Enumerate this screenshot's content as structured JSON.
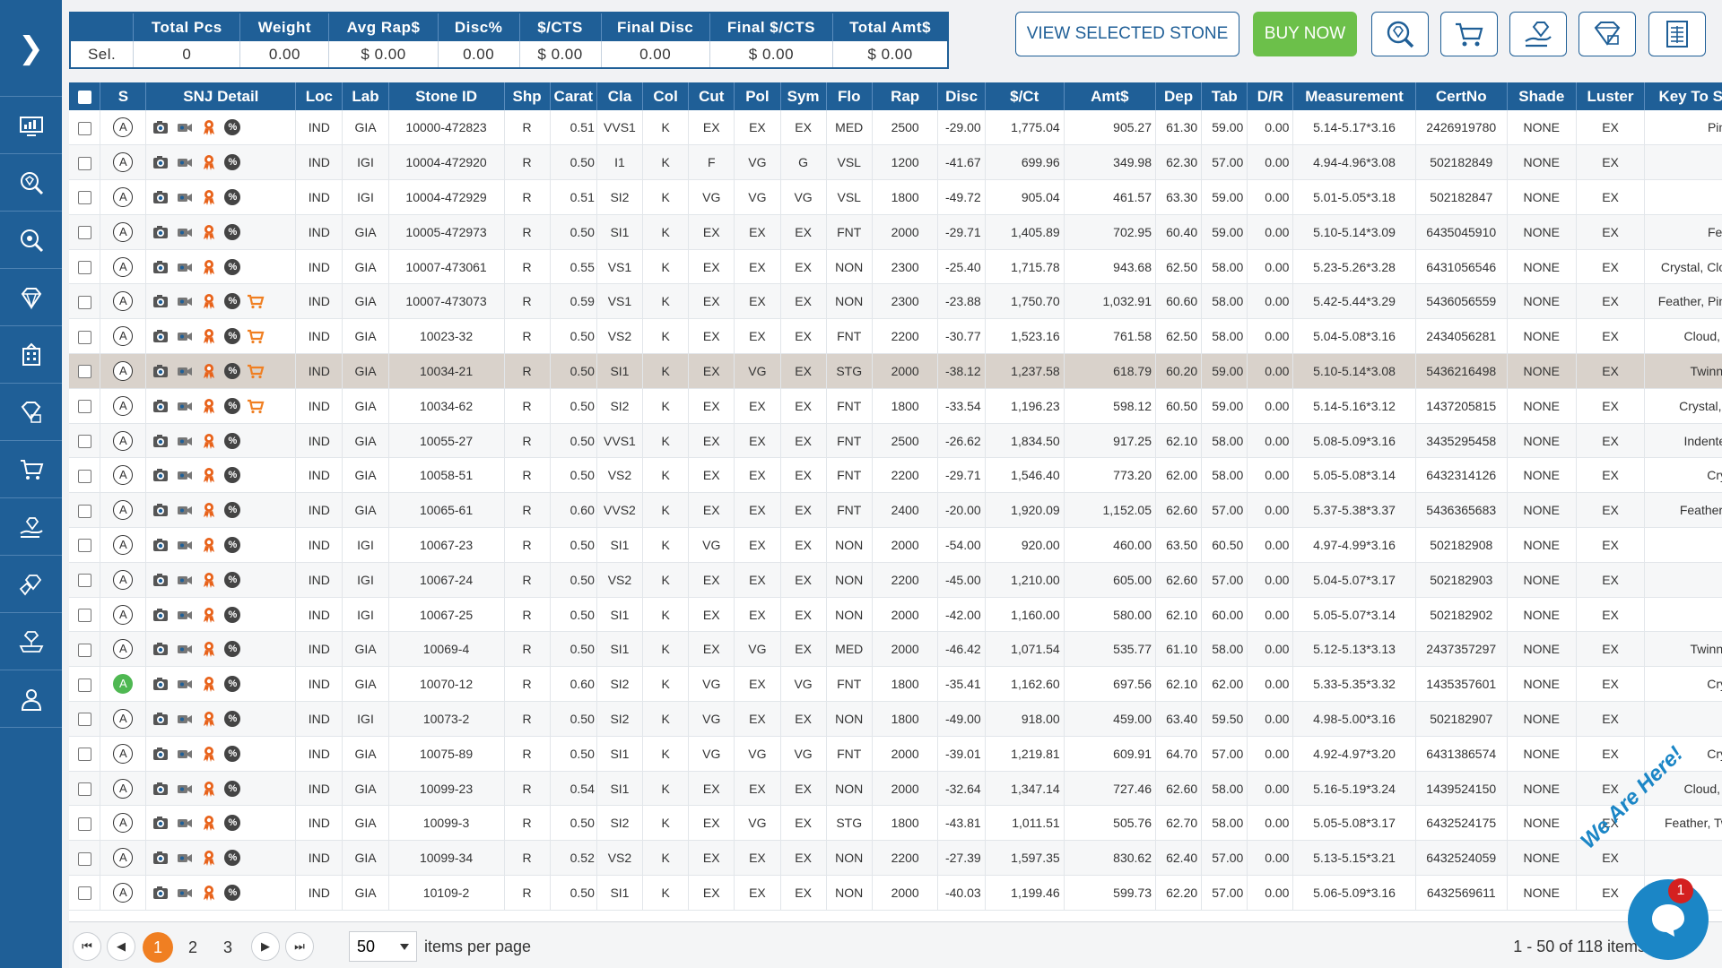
{
  "summary": {
    "headers": [
      "",
      "Total Pcs",
      "Weight",
      "Avg Rap$",
      "Disc%",
      "$/CTS",
      "Final Disc",
      "Final $/CTS",
      "Total Amt$"
    ],
    "row": [
      "Sel.",
      "0",
      "0.00",
      "$ 0.00",
      "0.00",
      "$ 0.00",
      "0.00",
      "$ 0.00",
      "$ 0.00"
    ]
  },
  "actions": {
    "view_selected": "VIEW SELECTED STONE",
    "buy_now": "BUY NOW"
  },
  "colors": {
    "primary": "#1f5f97",
    "buy": "#6cc04a",
    "active_page": "#f07f22",
    "highlight_row": "#d9d2cb"
  },
  "grid": {
    "columns": [
      "",
      "S",
      "SNJ Detail",
      "Loc",
      "Lab",
      "Stone ID",
      "Shp",
      "Carat",
      "Cla",
      "Col",
      "Cut",
      "Pol",
      "Sym",
      "Flo",
      "Rap",
      "Disc",
      "$/Ct",
      "Amt$",
      "Dep",
      "Tab",
      "D/R",
      "Measurement",
      "CertNo",
      "Shade",
      "Luster",
      "Key To S"
    ],
    "rows": [
      {
        "s": "A",
        "cart": false,
        "loc": "IND",
        "lab": "GIA",
        "id": "10000-472823",
        "shp": "R",
        "carat": "0.51",
        "cla": "VVS1",
        "col": "K",
        "cut": "EX",
        "pol": "EX",
        "sym": "EX",
        "flo": "MED",
        "rap": "2500",
        "disc": "-29.00",
        "pct": "1,775.04",
        "amt": "905.27",
        "dep": "61.30",
        "tab": "59.00",
        "dr": "0.00",
        "meas": "5.14-5.17*3.16",
        "cert": "2426919780",
        "shade": "NONE",
        "luster": "EX",
        "key": "Pinp"
      },
      {
        "s": "A",
        "cart": false,
        "loc": "IND",
        "lab": "IGI",
        "id": "10004-472920",
        "shp": "R",
        "carat": "0.50",
        "cla": "I1",
        "col": "K",
        "cut": "F",
        "pol": "VG",
        "sym": "G",
        "flo": "VSL",
        "rap": "1200",
        "disc": "-41.67",
        "pct": "699.96",
        "amt": "349.98",
        "dep": "62.30",
        "tab": "57.00",
        "dr": "0.00",
        "meas": "4.94-4.96*3.08",
        "cert": "502182849",
        "shade": "NONE",
        "luster": "EX",
        "key": ""
      },
      {
        "s": "A",
        "cart": false,
        "loc": "IND",
        "lab": "IGI",
        "id": "10004-472929",
        "shp": "R",
        "carat": "0.51",
        "cla": "SI2",
        "col": "K",
        "cut": "VG",
        "pol": "VG",
        "sym": "VG",
        "flo": "VSL",
        "rap": "1800",
        "disc": "-49.72",
        "pct": "905.04",
        "amt": "461.57",
        "dep": "63.30",
        "tab": "59.00",
        "dr": "0.00",
        "meas": "5.01-5.05*3.18",
        "cert": "502182847",
        "shade": "NONE",
        "luster": "EX",
        "key": ""
      },
      {
        "s": "A",
        "cart": false,
        "loc": "IND",
        "lab": "GIA",
        "id": "10005-472973",
        "shp": "R",
        "carat": "0.50",
        "cla": "SI1",
        "col": "K",
        "cut": "EX",
        "pol": "EX",
        "sym": "EX",
        "flo": "FNT",
        "rap": "2000",
        "disc": "-29.71",
        "pct": "1,405.89",
        "amt": "702.95",
        "dep": "60.40",
        "tab": "59.00",
        "dr": "0.00",
        "meas": "5.10-5.14*3.09",
        "cert": "6435045910",
        "shade": "NONE",
        "luster": "EX",
        "key": "Feat"
      },
      {
        "s": "A",
        "cart": false,
        "loc": "IND",
        "lab": "GIA",
        "id": "10007-473061",
        "shp": "R",
        "carat": "0.55",
        "cla": "VS1",
        "col": "K",
        "cut": "EX",
        "pol": "EX",
        "sym": "EX",
        "flo": "NON",
        "rap": "2300",
        "disc": "-25.40",
        "pct": "1,715.78",
        "amt": "943.68",
        "dep": "62.50",
        "tab": "58.00",
        "dr": "0.00",
        "meas": "5.23-5.26*3.28",
        "cert": "6431056546",
        "shade": "NONE",
        "luster": "EX",
        "key": "Crystal, Clou"
      },
      {
        "s": "A",
        "cart": true,
        "loc": "IND",
        "lab": "GIA",
        "id": "10007-473073",
        "shp": "R",
        "carat": "0.59",
        "cla": "VS1",
        "col": "K",
        "cut": "EX",
        "pol": "EX",
        "sym": "EX",
        "flo": "NON",
        "rap": "2300",
        "disc": "-23.88",
        "pct": "1,750.70",
        "amt": "1,032.91",
        "dep": "60.60",
        "tab": "58.00",
        "dr": "0.00",
        "meas": "5.42-5.44*3.29",
        "cert": "5436056559",
        "shade": "NONE",
        "luster": "EX",
        "key": "Feather, Pinp"
      },
      {
        "s": "A",
        "cart": true,
        "loc": "IND",
        "lab": "GIA",
        "id": "10023-32",
        "shp": "R",
        "carat": "0.50",
        "cla": "VS2",
        "col": "K",
        "cut": "EX",
        "pol": "EX",
        "sym": "EX",
        "flo": "FNT",
        "rap": "2200",
        "disc": "-30.77",
        "pct": "1,523.16",
        "amt": "761.58",
        "dep": "62.50",
        "tab": "58.00",
        "dr": "0.00",
        "meas": "5.04-5.08*3.16",
        "cert": "2434056281",
        "shade": "NONE",
        "luster": "EX",
        "key": "Cloud, C"
      },
      {
        "s": "A",
        "cart": true,
        "hl": true,
        "loc": "IND",
        "lab": "GIA",
        "id": "10034-21",
        "shp": "R",
        "carat": "0.50",
        "cla": "SI1",
        "col": "K",
        "cut": "EX",
        "pol": "VG",
        "sym": "EX",
        "flo": "STG",
        "rap": "2000",
        "disc": "-38.12",
        "pct": "1,237.58",
        "amt": "618.79",
        "dep": "60.20",
        "tab": "59.00",
        "dr": "0.00",
        "meas": "5.10-5.14*3.08",
        "cert": "5436216498",
        "shade": "NONE",
        "luster": "EX",
        "key": "Twinnin"
      },
      {
        "s": "A",
        "cart": true,
        "loc": "IND",
        "lab": "GIA",
        "id": "10034-62",
        "shp": "R",
        "carat": "0.50",
        "cla": "SI2",
        "col": "K",
        "cut": "EX",
        "pol": "EX",
        "sym": "EX",
        "flo": "FNT",
        "rap": "1800",
        "disc": "-33.54",
        "pct": "1,196.23",
        "amt": "598.12",
        "dep": "60.50",
        "tab": "59.00",
        "dr": "0.00",
        "meas": "5.14-5.16*3.12",
        "cert": "1437205815",
        "shade": "NONE",
        "luster": "EX",
        "key": "Crystal, F"
      },
      {
        "s": "A",
        "cart": false,
        "loc": "IND",
        "lab": "GIA",
        "id": "10055-27",
        "shp": "R",
        "carat": "0.50",
        "cla": "VVS1",
        "col": "K",
        "cut": "EX",
        "pol": "EX",
        "sym": "EX",
        "flo": "FNT",
        "rap": "2500",
        "disc": "-26.62",
        "pct": "1,834.50",
        "amt": "917.25",
        "dep": "62.10",
        "tab": "58.00",
        "dr": "0.00",
        "meas": "5.08-5.09*3.16",
        "cert": "3435295458",
        "shade": "NONE",
        "luster": "EX",
        "key": "Indented"
      },
      {
        "s": "A",
        "cart": false,
        "loc": "IND",
        "lab": "GIA",
        "id": "10058-51",
        "shp": "R",
        "carat": "0.50",
        "cla": "VS2",
        "col": "K",
        "cut": "EX",
        "pol": "EX",
        "sym": "EX",
        "flo": "FNT",
        "rap": "2200",
        "disc": "-29.71",
        "pct": "1,546.40",
        "amt": "773.20",
        "dep": "62.00",
        "tab": "58.00",
        "dr": "0.00",
        "meas": "5.05-5.08*3.14",
        "cert": "6432314126",
        "shade": "NONE",
        "luster": "EX",
        "key": "Crys"
      },
      {
        "s": "A",
        "cart": false,
        "loc": "IND",
        "lab": "GIA",
        "id": "10065-61",
        "shp": "R",
        "carat": "0.60",
        "cla": "VVS2",
        "col": "K",
        "cut": "EX",
        "pol": "EX",
        "sym": "EX",
        "flo": "FNT",
        "rap": "2400",
        "disc": "-20.00",
        "pct": "1,920.09",
        "amt": "1,152.05",
        "dep": "62.60",
        "tab": "57.00",
        "dr": "0.00",
        "meas": "5.37-5.38*3.37",
        "cert": "5436365683",
        "shade": "NONE",
        "luster": "EX",
        "key": "Feather, I"
      },
      {
        "s": "A",
        "cart": false,
        "loc": "IND",
        "lab": "IGI",
        "id": "10067-23",
        "shp": "R",
        "carat": "0.50",
        "cla": "SI1",
        "col": "K",
        "cut": "VG",
        "pol": "EX",
        "sym": "EX",
        "flo": "NON",
        "rap": "2000",
        "disc": "-54.00",
        "pct": "920.00",
        "amt": "460.00",
        "dep": "63.50",
        "tab": "60.50",
        "dr": "0.00",
        "meas": "4.97-4.99*3.16",
        "cert": "502182908",
        "shade": "NONE",
        "luster": "EX",
        "key": ""
      },
      {
        "s": "A",
        "cart": false,
        "loc": "IND",
        "lab": "IGI",
        "id": "10067-24",
        "shp": "R",
        "carat": "0.50",
        "cla": "VS2",
        "col": "K",
        "cut": "EX",
        "pol": "EX",
        "sym": "EX",
        "flo": "NON",
        "rap": "2200",
        "disc": "-45.00",
        "pct": "1,210.00",
        "amt": "605.00",
        "dep": "62.60",
        "tab": "57.00",
        "dr": "0.00",
        "meas": "5.04-5.07*3.17",
        "cert": "502182903",
        "shade": "NONE",
        "luster": "EX",
        "key": ""
      },
      {
        "s": "A",
        "cart": false,
        "loc": "IND",
        "lab": "IGI",
        "id": "10067-25",
        "shp": "R",
        "carat": "0.50",
        "cla": "SI1",
        "col": "K",
        "cut": "EX",
        "pol": "EX",
        "sym": "EX",
        "flo": "NON",
        "rap": "2000",
        "disc": "-42.00",
        "pct": "1,160.00",
        "amt": "580.00",
        "dep": "62.10",
        "tab": "60.00",
        "dr": "0.00",
        "meas": "5.05-5.07*3.14",
        "cert": "502182902",
        "shade": "NONE",
        "luster": "EX",
        "key": ""
      },
      {
        "s": "A",
        "cart": false,
        "loc": "IND",
        "lab": "GIA",
        "id": "10069-4",
        "shp": "R",
        "carat": "0.50",
        "cla": "SI1",
        "col": "K",
        "cut": "EX",
        "pol": "VG",
        "sym": "EX",
        "flo": "MED",
        "rap": "2000",
        "disc": "-46.42",
        "pct": "1,071.54",
        "amt": "535.77",
        "dep": "61.10",
        "tab": "58.00",
        "dr": "0.00",
        "meas": "5.12-5.13*3.13",
        "cert": "2437357297",
        "shade": "NONE",
        "luster": "EX",
        "key": "Twinnin"
      },
      {
        "s": "A",
        "green": true,
        "cart": false,
        "loc": "IND",
        "lab": "GIA",
        "id": "10070-12",
        "shp": "R",
        "carat": "0.60",
        "cla": "SI2",
        "col": "K",
        "cut": "VG",
        "pol": "EX",
        "sym": "VG",
        "flo": "FNT",
        "rap": "1800",
        "disc": "-35.41",
        "pct": "1,162.60",
        "amt": "697.56",
        "dep": "62.10",
        "tab": "62.00",
        "dr": "0.00",
        "meas": "5.33-5.35*3.32",
        "cert": "1435357601",
        "shade": "NONE",
        "luster": "EX",
        "key": "Crys"
      },
      {
        "s": "A",
        "cart": false,
        "loc": "IND",
        "lab": "IGI",
        "id": "10073-2",
        "shp": "R",
        "carat": "0.50",
        "cla": "SI2",
        "col": "K",
        "cut": "VG",
        "pol": "EX",
        "sym": "EX",
        "flo": "NON",
        "rap": "1800",
        "disc": "-49.00",
        "pct": "918.00",
        "amt": "459.00",
        "dep": "63.40",
        "tab": "59.50",
        "dr": "0.00",
        "meas": "4.98-5.00*3.16",
        "cert": "502182907",
        "shade": "NONE",
        "luster": "EX",
        "key": ""
      },
      {
        "s": "A",
        "cart": false,
        "loc": "IND",
        "lab": "GIA",
        "id": "10075-89",
        "shp": "R",
        "carat": "0.50",
        "cla": "SI1",
        "col": "K",
        "cut": "VG",
        "pol": "VG",
        "sym": "VG",
        "flo": "FNT",
        "rap": "2000",
        "disc": "-39.01",
        "pct": "1,219.81",
        "amt": "609.91",
        "dep": "64.70",
        "tab": "57.00",
        "dr": "0.00",
        "meas": "4.92-4.97*3.20",
        "cert": "6431386574",
        "shade": "NONE",
        "luster": "EX",
        "key": "Crys"
      },
      {
        "s": "A",
        "cart": false,
        "loc": "IND",
        "lab": "GIA",
        "id": "10099-23",
        "shp": "R",
        "carat": "0.54",
        "cla": "SI1",
        "col": "K",
        "cut": "EX",
        "pol": "EX",
        "sym": "EX",
        "flo": "NON",
        "rap": "2000",
        "disc": "-32.64",
        "pct": "1,347.14",
        "amt": "727.46",
        "dep": "62.60",
        "tab": "58.00",
        "dr": "0.00",
        "meas": "5.16-5.19*3.24",
        "cert": "1439524150",
        "shade": "NONE",
        "luster": "EX",
        "key": "Cloud, C"
      },
      {
        "s": "A",
        "cart": false,
        "loc": "IND",
        "lab": "GIA",
        "id": "10099-3",
        "shp": "R",
        "carat": "0.50",
        "cla": "SI2",
        "col": "K",
        "cut": "EX",
        "pol": "VG",
        "sym": "EX",
        "flo": "STG",
        "rap": "1800",
        "disc": "-43.81",
        "pct": "1,011.51",
        "amt": "505.76",
        "dep": "62.70",
        "tab": "58.00",
        "dr": "0.00",
        "meas": "5.05-5.08*3.17",
        "cert": "6432524175",
        "shade": "NONE",
        "luster": "EX",
        "key": "Feather, Twi"
      },
      {
        "s": "A",
        "cart": false,
        "loc": "IND",
        "lab": "GIA",
        "id": "10099-34",
        "shp": "R",
        "carat": "0.52",
        "cla": "VS2",
        "col": "K",
        "cut": "EX",
        "pol": "EX",
        "sym": "EX",
        "flo": "NON",
        "rap": "2200",
        "disc": "-27.39",
        "pct": "1,597.35",
        "amt": "830.62",
        "dep": "62.40",
        "tab": "57.00",
        "dr": "0.00",
        "meas": "5.13-5.15*3.21",
        "cert": "6432524059",
        "shade": "NONE",
        "luster": "EX",
        "key": ""
      },
      {
        "s": "A",
        "cart": false,
        "loc": "IND",
        "lab": "GIA",
        "id": "10109-2",
        "shp": "R",
        "carat": "0.50",
        "cla": "SI1",
        "col": "K",
        "cut": "EX",
        "pol": "EX",
        "sym": "EX",
        "flo": "NON",
        "rap": "2000",
        "disc": "-40.03",
        "pct": "1,199.46",
        "amt": "599.73",
        "dep": "62.20",
        "tab": "57.00",
        "dr": "0.00",
        "meas": "5.06-5.09*3.16",
        "cert": "6432569611",
        "shade": "NONE",
        "luster": "EX",
        "key": ""
      }
    ]
  },
  "pager": {
    "pages": [
      "1",
      "2",
      "3"
    ],
    "active_page": "1",
    "page_size": "50",
    "items_per_page_label": "items per page",
    "info": "1 - 50 of 118 items"
  },
  "chat": {
    "badge": "1",
    "hint": "We Are Here!"
  },
  "icons": {
    "sidebar": [
      "chevron-right-icon",
      "dashboard-icon",
      "diamond-search-icon",
      "advanced-search-icon",
      "diamond-icon",
      "building-icon",
      "price-tag-icon",
      "cart-icon",
      "hand-diamond-icon",
      "diamond-offer-icon",
      "jewelry-icon",
      "user-icon"
    ],
    "toolbar": [
      "diamond-search-icon",
      "cart-icon",
      "hand-diamond-icon",
      "diamond-tag-icon",
      "spreadsheet-icon"
    ]
  }
}
